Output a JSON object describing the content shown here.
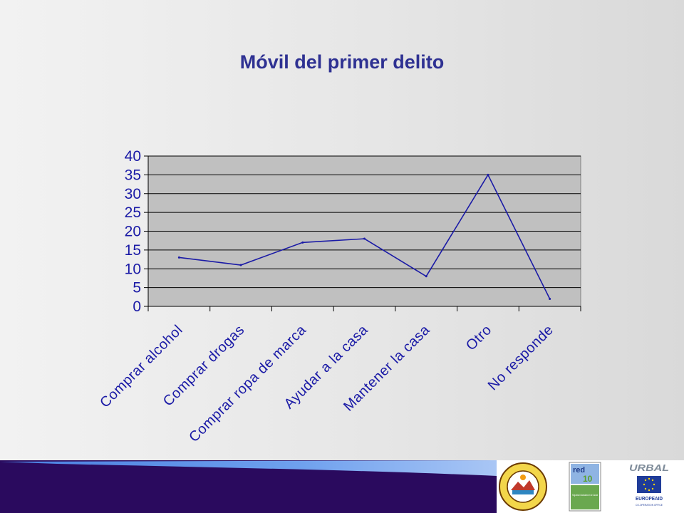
{
  "slide": {
    "title": "Móvil del primer delito"
  },
  "chart_data": {
    "type": "line",
    "title": "Móvil del primer delito",
    "categories": [
      "Comprar alcohol",
      "Comprar drogas",
      "Comprar ropa de marca",
      "Ayudar a la casa",
      "Mantener la casa",
      "Otro",
      "No responde"
    ],
    "series": [
      {
        "values": [
          13,
          11,
          17,
          18,
          8,
          35,
          2
        ]
      }
    ],
    "ylim": [
      0,
      40
    ],
    "yticks": [
      0,
      5,
      10,
      15,
      20,
      25,
      30,
      35,
      40
    ],
    "grid": true,
    "legend": "none",
    "colors": {
      "line": "#1a1aa6",
      "plot_bg": "#c0c0c0",
      "axis_text": "#1a1aa6",
      "grid": "#000000"
    }
  },
  "footer": {
    "logos": {
      "municipal": {
        "icon": "municipal-seal-icon",
        "ring_text": "MUNICIPALIDAD DE ILOPANGO · TIERRA DE SOL Y CIELO"
      },
      "red10": {
        "icon": "red10-logo-icon",
        "word": "red",
        "number": "10",
        "caption": "Seguridad Ciudadana en la Ciudad"
      },
      "urbal": {
        "word": "URBAL",
        "brand": "EUROPEAID",
        "sub": "CO-OPERATION OFFICE"
      }
    },
    "colors": {
      "band_dark": "#2a0a5e",
      "band_light": "#5b8fe0"
    }
  }
}
